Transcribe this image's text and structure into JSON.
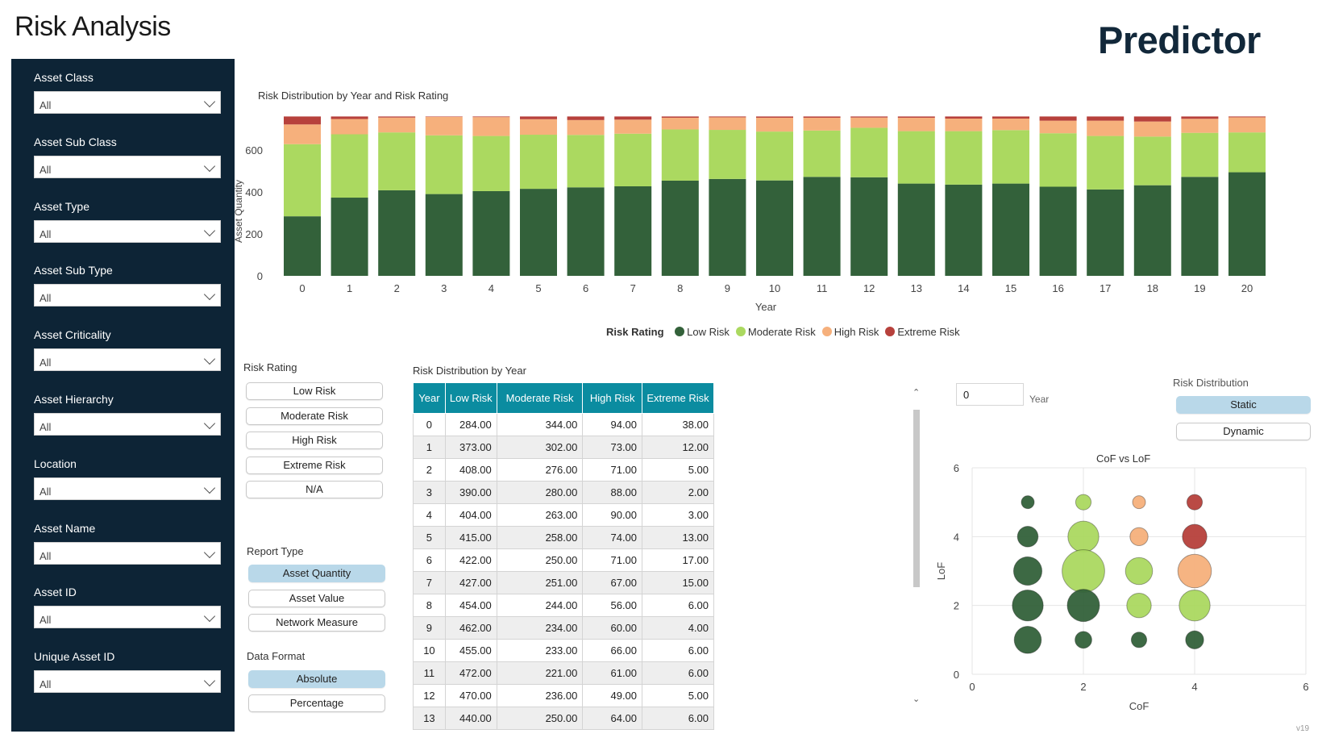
{
  "header": {
    "title": "Risk Analysis",
    "brand": "Predictor"
  },
  "filters": [
    {
      "label": "Asset Class",
      "value": "All"
    },
    {
      "label": "Asset Sub Class",
      "value": "All"
    },
    {
      "label": "Asset Type",
      "value": "All"
    },
    {
      "label": "Asset Sub Type",
      "value": "All"
    },
    {
      "label": "Asset Criticality",
      "value": "All"
    },
    {
      "label": "Asset Hierarchy",
      "value": "All"
    },
    {
      "label": "Location",
      "value": "All"
    },
    {
      "label": "Asset Name",
      "value": "All"
    },
    {
      "label": "Asset ID",
      "value": "All"
    },
    {
      "label": "Unique Asset ID",
      "value": "All"
    }
  ],
  "colors": {
    "low": "#33613a",
    "moderate": "#abd960",
    "high": "#f6b07c",
    "extreme": "#b7413c",
    "sidebar": "#0d2436",
    "table_header": "#0b8ca0",
    "selected": "#b9d8e9"
  },
  "chart_data": [
    {
      "type": "bar",
      "stacked": true,
      "title": "Risk Distribution by Year and Risk Rating",
      "xlabel": "Year",
      "ylabel": "Asset Quantity",
      "categories": [
        "0",
        "1",
        "2",
        "3",
        "4",
        "5",
        "6",
        "7",
        "8",
        "9",
        "10",
        "11",
        "12",
        "13",
        "14",
        "15",
        "16",
        "17",
        "18",
        "19",
        "20"
      ],
      "yticks": [
        0,
        200,
        400,
        600
      ],
      "ylim": [
        0,
        760
      ],
      "grid": false,
      "legend_title": "Risk Rating",
      "legend_position": "bottom",
      "series": [
        {
          "name": "Low Risk",
          "values": [
            284,
            373,
            408,
            390,
            404,
            415,
            422,
            427,
            454,
            462,
            455,
            472,
            470,
            440,
            435,
            440,
            425,
            412,
            432,
            472,
            494
          ]
        },
        {
          "name": "Moderate Risk",
          "values": [
            344,
            302,
            276,
            280,
            263,
            258,
            250,
            251,
            244,
            234,
            233,
            221,
            236,
            250,
            255,
            255,
            255,
            255,
            232,
            210,
            190
          ]
        },
        {
          "name": "High Risk",
          "values": [
            94,
            73,
            71,
            88,
            90,
            74,
            71,
            67,
            56,
            60,
            66,
            61,
            49,
            64,
            60,
            55,
            60,
            73,
            72,
            67,
            72
          ]
        },
        {
          "name": "Extreme Risk",
          "values": [
            38,
            12,
            5,
            2,
            3,
            13,
            17,
            15,
            6,
            4,
            6,
            6,
            5,
            6,
            10,
            10,
            20,
            20,
            24,
            11,
            4
          ]
        }
      ]
    },
    {
      "type": "table",
      "title": "Risk Distribution by Year",
      "columns": [
        "Year",
        "Low Risk",
        "Moderate Risk",
        "High Risk",
        "Extreme Risk"
      ],
      "rows": [
        [
          "0",
          "284.00",
          "344.00",
          "94.00",
          "38.00"
        ],
        [
          "1",
          "373.00",
          "302.00",
          "73.00",
          "12.00"
        ],
        [
          "2",
          "408.00",
          "276.00",
          "71.00",
          "5.00"
        ],
        [
          "3",
          "390.00",
          "280.00",
          "88.00",
          "2.00"
        ],
        [
          "4",
          "404.00",
          "263.00",
          "90.00",
          "3.00"
        ],
        [
          "5",
          "415.00",
          "258.00",
          "74.00",
          "13.00"
        ],
        [
          "6",
          "422.00",
          "250.00",
          "71.00",
          "17.00"
        ],
        [
          "7",
          "427.00",
          "251.00",
          "67.00",
          "15.00"
        ],
        [
          "8",
          "454.00",
          "244.00",
          "56.00",
          "6.00"
        ],
        [
          "9",
          "462.00",
          "234.00",
          "60.00",
          "4.00"
        ],
        [
          "10",
          "455.00",
          "233.00",
          "66.00",
          "6.00"
        ],
        [
          "11",
          "472.00",
          "221.00",
          "61.00",
          "6.00"
        ],
        [
          "12",
          "470.00",
          "236.00",
          "49.00",
          "5.00"
        ],
        [
          "13",
          "440.00",
          "250.00",
          "64.00",
          "6.00"
        ]
      ]
    },
    {
      "type": "scatter",
      "title": "CoF vs LoF",
      "xlabel": "CoF",
      "ylabel": "LoF",
      "xlim": [
        0,
        6
      ],
      "ylim": [
        0,
        6
      ],
      "xticks": [
        0,
        2,
        4,
        6
      ],
      "yticks": [
        0,
        2,
        4,
        6
      ],
      "grid": true,
      "points": [
        {
          "x": 1,
          "y": 5,
          "size": 1.0,
          "rating": "low"
        },
        {
          "x": 1,
          "y": 4,
          "size": 1.6,
          "rating": "low"
        },
        {
          "x": 1,
          "y": 3,
          "size": 2.2,
          "rating": "low"
        },
        {
          "x": 1,
          "y": 2,
          "size": 2.4,
          "rating": "low"
        },
        {
          "x": 1,
          "y": 1,
          "size": 2.1,
          "rating": "low"
        },
        {
          "x": 2,
          "y": 5,
          "size": 1.2,
          "rating": "moderate"
        },
        {
          "x": 2,
          "y": 4,
          "size": 2.4,
          "rating": "moderate"
        },
        {
          "x": 2,
          "y": 3,
          "size": 3.3,
          "rating": "moderate"
        },
        {
          "x": 2,
          "y": 2,
          "size": 2.5,
          "rating": "low"
        },
        {
          "x": 2,
          "y": 1,
          "size": 1.3,
          "rating": "low"
        },
        {
          "x": 3,
          "y": 5,
          "size": 1.0,
          "rating": "high"
        },
        {
          "x": 3,
          "y": 4,
          "size": 1.4,
          "rating": "high"
        },
        {
          "x": 3,
          "y": 3,
          "size": 2.1,
          "rating": "moderate"
        },
        {
          "x": 3,
          "y": 2,
          "size": 1.9,
          "rating": "moderate"
        },
        {
          "x": 3,
          "y": 1,
          "size": 1.2,
          "rating": "low"
        },
        {
          "x": 4,
          "y": 5,
          "size": 1.2,
          "rating": "extreme"
        },
        {
          "x": 4,
          "y": 4,
          "size": 1.9,
          "rating": "extreme"
        },
        {
          "x": 4,
          "y": 3,
          "size": 2.6,
          "rating": "high"
        },
        {
          "x": 4,
          "y": 2,
          "size": 2.4,
          "rating": "moderate"
        },
        {
          "x": 4,
          "y": 1,
          "size": 1.4,
          "rating": "low"
        }
      ]
    }
  ],
  "risk_rating": {
    "label": "Risk Rating",
    "options": [
      "Low Risk",
      "Moderate Risk",
      "High Risk",
      "Extreme Risk",
      "N/A"
    ]
  },
  "report_type": {
    "label": "Report Type",
    "options": [
      "Asset Quantity",
      "Asset Value",
      "Network Measure"
    ],
    "selected": "Asset Quantity"
  },
  "data_format": {
    "label": "Data Format",
    "options": [
      "Absolute",
      "Percentage"
    ],
    "selected": "Absolute"
  },
  "year_filter": {
    "value": "0",
    "label": "Year"
  },
  "risk_distribution": {
    "label": "Risk Distribution",
    "options": [
      "Static",
      "Dynamic"
    ],
    "selected": "Static"
  },
  "version": "v19"
}
